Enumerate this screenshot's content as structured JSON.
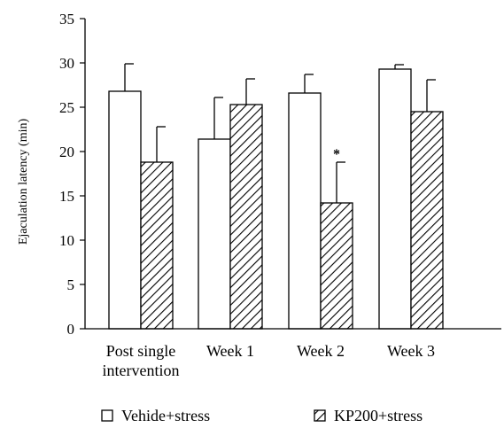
{
  "chart_data": {
    "type": "bar",
    "title": "",
    "xlabel": "",
    "ylabel": "Ejaculation latency (min)",
    "ylim": [
      0,
      35
    ],
    "yticks": [
      0,
      5,
      10,
      15,
      20,
      25,
      30,
      35
    ],
    "categories": [
      [
        "Post single",
        "intervention"
      ],
      [
        "Week 1"
      ],
      [
        "Week 2"
      ],
      [
        "Week 3"
      ]
    ],
    "series": [
      {
        "name": "Vehide+stress",
        "fill": "white",
        "values": [
          26.8,
          21.4,
          26.6,
          29.3
        ],
        "errors": [
          3.1,
          4.7,
          2.1,
          0.5
        ]
      },
      {
        "name": "KP200+stress",
        "fill": "hatched",
        "values": [
          18.8,
          25.3,
          14.2,
          24.5
        ],
        "errors": [
          4.0,
          2.9,
          4.6,
          3.6
        ]
      }
    ],
    "annotations": [
      {
        "category_index": 2,
        "series_index": 1,
        "text": "*"
      }
    ],
    "legend_position": "bottom",
    "grid": false,
    "colors": {
      "stroke": "#000000",
      "background": "#ffffff"
    }
  }
}
